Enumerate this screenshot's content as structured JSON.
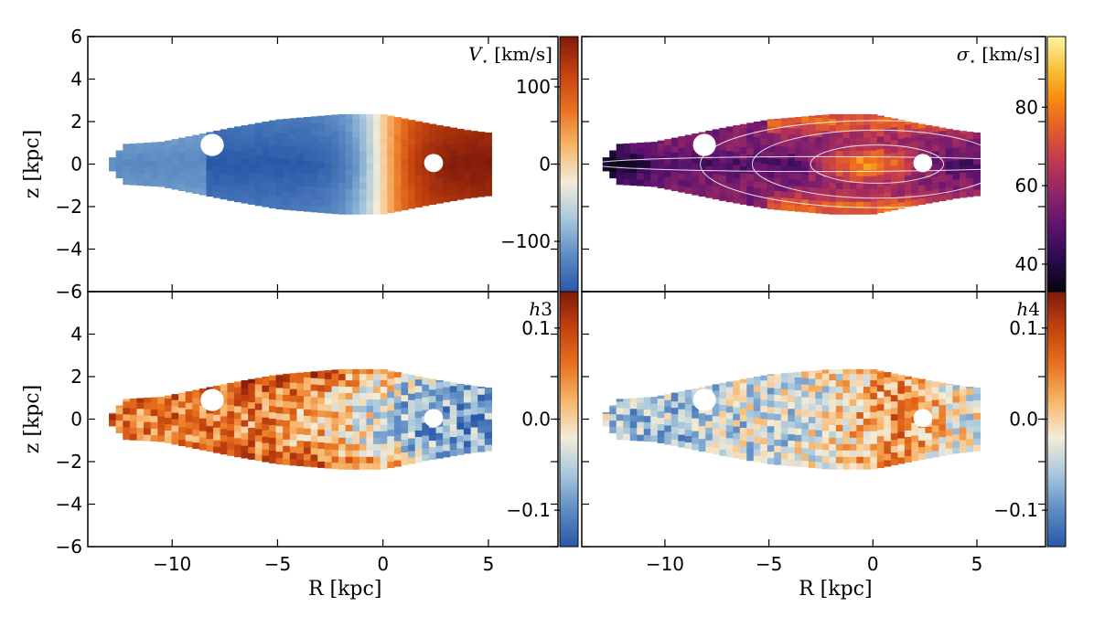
{
  "colors": {
    "diverging": [
      "#2a58a8",
      "#5d8cc4",
      "#a9c8dc",
      "#f4ecd8",
      "#f7b56a",
      "#e8711e",
      "#c3420f",
      "#7f1a0b"
    ],
    "inferno": [
      "#05050f",
      "#2b0a4c",
      "#5b1270",
      "#8b2369",
      "#bb3755",
      "#e2582f",
      "#f8880f",
      "#fbc33a",
      "#fbf5a3"
    ],
    "contour": "#ffffff"
  },
  "chart_data": [
    {
      "type": "heatmap",
      "panel": "V",
      "title_symbol": "V",
      "title_sub": "⋆",
      "title_unit": " [km/s]",
      "xlabel": "",
      "ylabel": "z [kpc]",
      "xlim": [
        -14,
        8.3
      ],
      "ylim": [
        -6,
        6
      ],
      "xticks": [
        -10,
        -5,
        0,
        5
      ],
      "xtick_labels": [],
      "yticks": [
        -6,
        -4,
        -2,
        0,
        2,
        4,
        6
      ],
      "ytick_labels": [
        "−6",
        "−4",
        "−2",
        "0",
        "2",
        "4",
        "6"
      ],
      "colormap": "diverging",
      "clim": [
        -165,
        165
      ],
      "colorbar_ticks": [
        -100,
        0,
        100
      ],
      "colorbar_tick_labels": [
        "−100",
        "0",
        "100"
      ],
      "field": "rotation",
      "contours": false
    },
    {
      "type": "heatmap",
      "panel": "sigma",
      "title_symbol": "σ",
      "title_sub": "⋆",
      "title_unit": " [km/s]",
      "xlabel": "",
      "ylabel": "",
      "xlim": [
        -14,
        8.3
      ],
      "ylim": [
        -6,
        6
      ],
      "xticks": [
        -10,
        -5,
        0,
        5
      ],
      "xtick_labels": [],
      "yticks": [
        -6,
        -4,
        -2,
        0,
        2,
        4,
        6
      ],
      "ytick_labels": [],
      "colormap": "inferno",
      "clim": [
        33,
        98
      ],
      "colorbar_ticks": [
        40,
        60,
        80
      ],
      "colorbar_tick_labels": [
        "40",
        "60",
        "80"
      ],
      "field": "dispersion",
      "contours": true
    },
    {
      "type": "heatmap",
      "panel": "h3",
      "title_symbol": "h",
      "title_sub": "",
      "title_unit": "3",
      "xlabel": "R [kpc]",
      "ylabel": "z [kpc]",
      "xlim": [
        -14,
        8.3
      ],
      "ylim": [
        -6,
        6
      ],
      "xticks": [
        -10,
        -5,
        0,
        5
      ],
      "xtick_labels": [
        "−10",
        "−5",
        "0",
        "5"
      ],
      "yticks": [
        -6,
        -4,
        -2,
        0,
        2,
        4,
        6
      ],
      "ytick_labels": [
        "−6",
        "−4",
        "−2",
        "0",
        "2",
        "4",
        ""
      ],
      "colormap": "diverging",
      "clim": [
        -0.14,
        0.14
      ],
      "colorbar_ticks": [
        -0.1,
        0.0,
        0.1
      ],
      "colorbar_tick_labels": [
        "−0.1",
        "0.0",
        "0.1"
      ],
      "field": "h3",
      "contours": false
    },
    {
      "type": "heatmap",
      "panel": "h4",
      "title_symbol": "h",
      "title_sub": "",
      "title_unit": "4",
      "xlabel": "R [kpc]",
      "ylabel": "",
      "xlim": [
        -14,
        8.3
      ],
      "ylim": [
        -6,
        6
      ],
      "xticks": [
        -10,
        -5,
        0,
        5
      ],
      "xtick_labels": [
        "−10",
        "−5",
        "0",
        "5"
      ],
      "yticks": [
        -6,
        -4,
        -2,
        0,
        2,
        4,
        6
      ],
      "ytick_labels": [],
      "colormap": "diverging",
      "clim": [
        -0.14,
        0.14
      ],
      "colorbar_ticks": [
        -0.1,
        0.0,
        0.1
      ],
      "colorbar_tick_labels": [
        "−0.1",
        "0.0",
        "0.1"
      ],
      "field": "h4",
      "contours": false
    }
  ]
}
